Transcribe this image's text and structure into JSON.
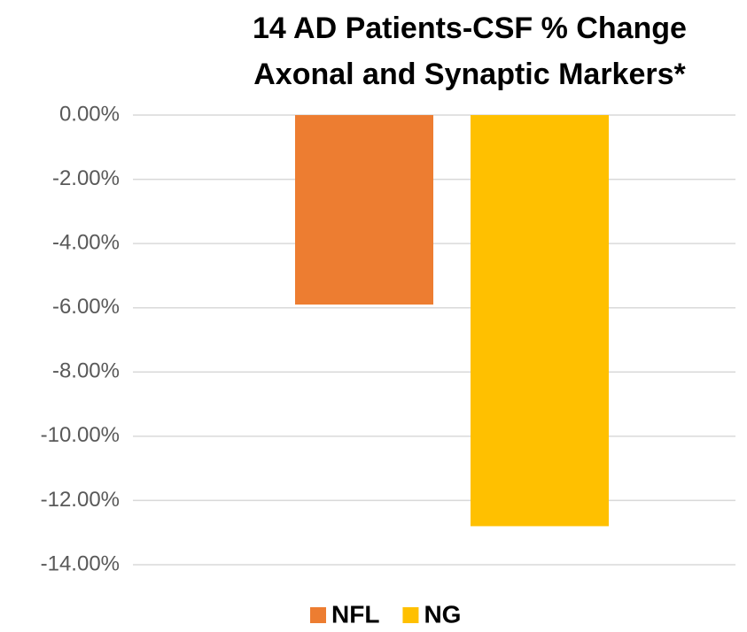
{
  "chart_data": {
    "type": "bar",
    "title": [
      "14 AD Patients-CSF % Change",
      "Axonal and Synaptic Markers*"
    ],
    "categories": [
      null
    ],
    "series": [
      {
        "name": "NFL",
        "color": "#ed7d31",
        "values": [
          -5.9
        ]
      },
      {
        "name": "NG",
        "color": "#ffc000",
        "values": [
          -12.8
        ]
      }
    ],
    "ylim": [
      -14,
      0
    ],
    "yticks": [
      {
        "value": 0,
        "label": "0.00%"
      },
      {
        "value": -2,
        "label": "-2.00%"
      },
      {
        "value": -4,
        "label": "-4.00%"
      },
      {
        "value": -6,
        "label": "-6.00%"
      },
      {
        "value": -8,
        "label": "-8.00%"
      },
      {
        "value": -10,
        "label": "-10.00%"
      },
      {
        "value": -12,
        "label": "-12.00%"
      },
      {
        "value": -14,
        "label": "-14.00%"
      }
    ],
    "grid": true,
    "legend": "bottom"
  }
}
